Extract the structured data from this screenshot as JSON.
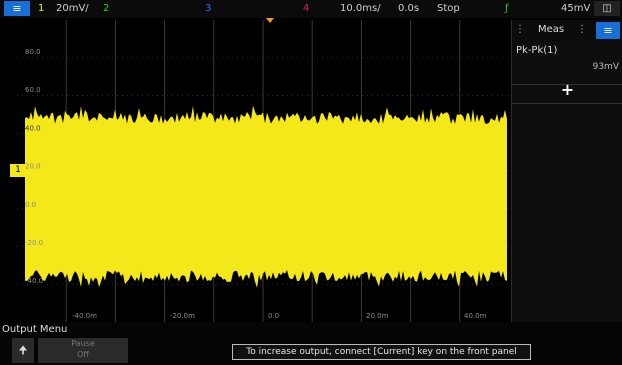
{
  "topbar": {
    "menu_icon": "menu-icon",
    "ch1_num": "1",
    "ch1_scale": "20mV/",
    "ch2_num": "2",
    "ch3_num": "3",
    "ch4_num": "4",
    "timebase": "10.0ms/",
    "delay": "0.0s",
    "run_state": "Stop",
    "trigger_level": "45mV",
    "help_icon": "help-icon",
    "colors": {
      "ch1": "#f4e81a",
      "ch2": "#1fd41f",
      "ch3": "#2a6bff",
      "ch4": "#e0213b",
      "trigger": "#2ec12e"
    }
  },
  "plot": {
    "y_labels": [
      "80.0",
      "60.0",
      "40.0",
      "20.0",
      "0.0",
      "-20.0",
      "-40.0"
    ],
    "x_labels": [
      "-40.0m",
      "-20.0m",
      "0.0",
      "20.0m",
      "40.0m"
    ],
    "ground_marker": "1",
    "signal_level": 0.62
  },
  "side_panel": {
    "title": "Meas",
    "measurement_name": "Pk-Pk(1)",
    "measurement_value": "93mV",
    "add_label": "+"
  },
  "bottom": {
    "label": "Output Menu",
    "softkey_top": "Pause",
    "softkey_bottom": "Off",
    "hint": "To increase output, connect [Current] key on the front panel"
  }
}
